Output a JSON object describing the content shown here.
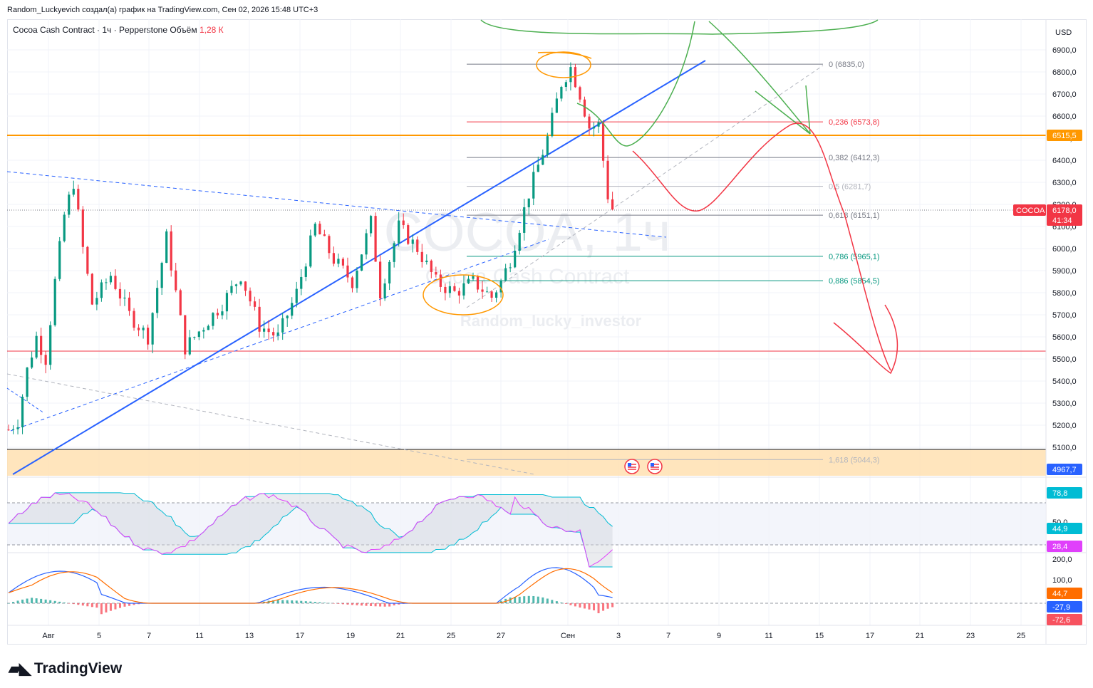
{
  "header": {
    "author_line": "Random_Luckyevich создал(а) график на TradingView.com, Сен 02, 2026 15:48 UTC+3",
    "symbol_line": "Cocoa Cash Contract · 1ч · Pepperstone",
    "volume_label": "Объём",
    "volume_value": "1,28 К"
  },
  "watermark": {
    "symbol": "COCOA, 1ч",
    "name": "Cocoa Cash Contract",
    "author": "Random_lucky_investor"
  },
  "brand": {
    "logo_icon": "tradingview-logo-icon",
    "name": "TradingView"
  },
  "chart_data": {
    "type": "candlestick",
    "currency": "USD",
    "price_range": [
      4900,
      7000
    ],
    "y_ticks": [
      "6900,0",
      "6800,0",
      "6700,0",
      "6600,0",
      "6500,0",
      "6400,0",
      "6300,0",
      "6200,0",
      "6100,0",
      "6000,0",
      "5900,0",
      "5800,0",
      "5700,0",
      "5600,0",
      "5500,0",
      "5400,0",
      "5300,0",
      "5200,0",
      "5100,0"
    ],
    "x_ticks": [
      "Авг",
      "5",
      "7",
      "11",
      "13",
      "17",
      "19",
      "21",
      "25",
      "27",
      "Сен",
      "3",
      "7",
      "9",
      "11",
      "15",
      "17",
      "21",
      "23",
      "25"
    ],
    "price_path": [
      [
        0,
        5180
      ],
      [
        2,
        5220
      ],
      [
        4,
        5450
      ],
      [
        6,
        5600
      ],
      [
        8,
        5500
      ],
      [
        10,
        5850
      ],
      [
        12,
        6150
      ],
      [
        14,
        6300
      ],
      [
        16,
        6000
      ],
      [
        18,
        5750
      ],
      [
        22,
        5880
      ],
      [
        26,
        5700
      ],
      [
        30,
        5600
      ],
      [
        34,
        6050
      ],
      [
        38,
        5550
      ],
      [
        42,
        5650
      ],
      [
        46,
        5750
      ],
      [
        50,
        5880
      ],
      [
        54,
        5650
      ],
      [
        58,
        5600
      ],
      [
        62,
        5800
      ],
      [
        66,
        6100
      ],
      [
        70,
        5950
      ],
      [
        74,
        5850
      ],
      [
        78,
        6120
      ],
      [
        80,
        5800
      ],
      [
        84,
        6100
      ],
      [
        88,
        6000
      ],
      [
        92,
        5850
      ],
      [
        96,
        5800
      ],
      [
        100,
        5850
      ],
      [
        104,
        5780
      ],
      [
        106,
        5850
      ],
      [
        108,
        5950
      ],
      [
        112,
        6250
      ],
      [
        116,
        6500
      ],
      [
        119,
        6750
      ],
      [
        121,
        6820
      ],
      [
        123,
        6700
      ],
      [
        125,
        6550
      ],
      [
        127,
        6560
      ],
      [
        129,
        6240
      ],
      [
        130,
        6180
      ]
    ],
    "last_price": "6178,0",
    "countdown": "41:34",
    "symbol_tag": "COCOA",
    "horizontal_levels": [
      {
        "label": "6515,5",
        "color": "#ff9800"
      },
      {
        "label": "4967,7",
        "color": "#2962ff"
      }
    ],
    "fibonacci": [
      {
        "level": "0",
        "price": "6835,0",
        "color": "#787b86"
      },
      {
        "level": "0,236",
        "price": "6573,8",
        "color": "#f23645"
      },
      {
        "level": "0,382",
        "price": "6412,3",
        "color": "#787b86"
      },
      {
        "level": "0,5",
        "price": "6281,7",
        "color": "#b2b5be"
      },
      {
        "level": "0,618",
        "price": "6151,1",
        "color": "#787b86"
      },
      {
        "level": "0,786",
        "price": "5965,1",
        "color": "#089981"
      },
      {
        "level": "0,886",
        "price": "5854,5",
        "color": "#089981"
      },
      {
        "level": "1,618",
        "price": "5044,3",
        "color": "#b2b5be"
      }
    ],
    "rsi": {
      "mid_label": "50,0",
      "values": [
        {
          "label": "78,8",
          "color": "#00bcd4"
        },
        {
          "label": "44,9",
          "color": "#00bcd4"
        },
        {
          "label": "28,4",
          "color": "#e040fb"
        }
      ]
    },
    "macd": {
      "ticks": [
        "200,0",
        "100,0"
      ],
      "values": [
        {
          "label": "44,7",
          "color": "#ff6d00"
        },
        {
          "label": "-27,9",
          "color": "#2962ff"
        },
        {
          "label": "-72,6",
          "color": "#f7525f"
        }
      ]
    },
    "event_icons": [
      "us-flag-icon",
      "us-flag-icon"
    ]
  }
}
